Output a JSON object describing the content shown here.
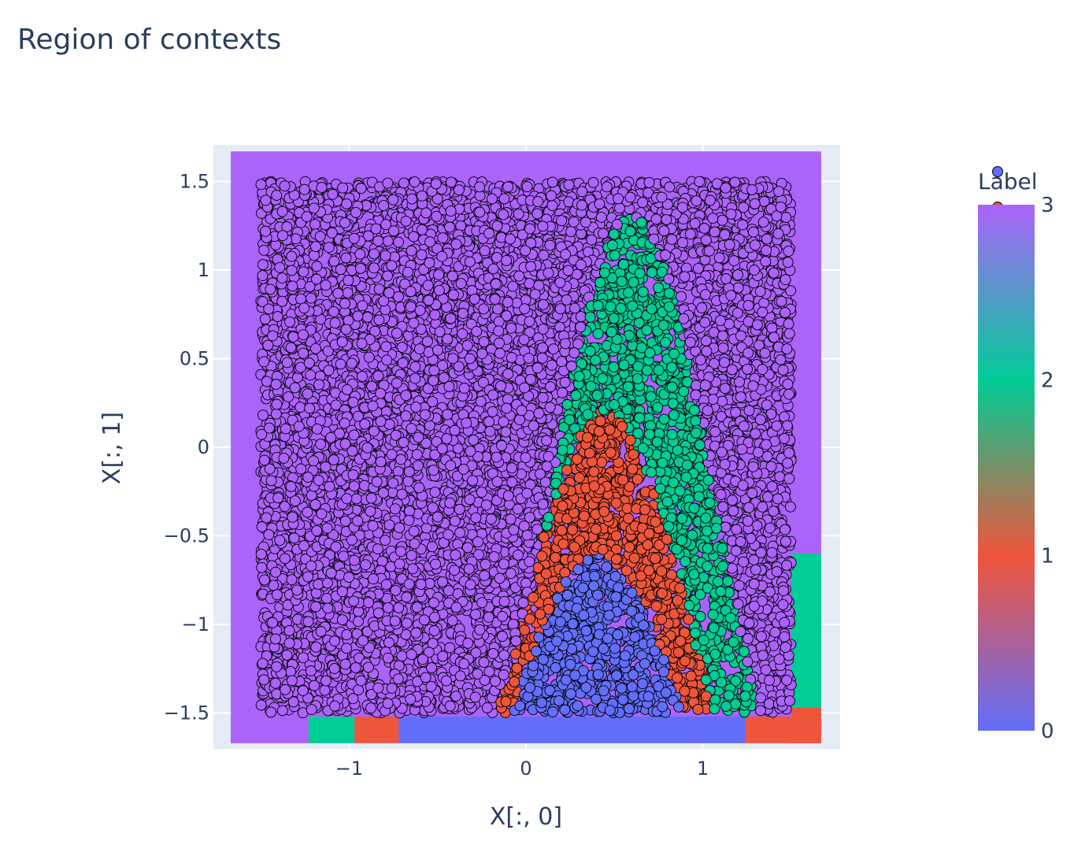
{
  "chart_data": {
    "type": "scatter",
    "title": "Region of contexts",
    "xlabel": "X[:, 0]",
    "ylabel": "X[:, 1]",
    "xlim": [
      -1.77,
      1.77
    ],
    "ylim": [
      -1.68,
      1.68
    ],
    "x_ticks": [
      -1,
      0,
      1
    ],
    "x_tick_labels": [
      "−1",
      "0",
      "1"
    ],
    "y_ticks": [
      -1.5,
      -1,
      -0.5,
      0,
      0.5,
      1,
      1.5
    ],
    "y_tick_labels": [
      "−1.5",
      "−1",
      "−0.5",
      "0",
      "0.5",
      "1",
      "1.5"
    ],
    "grid": true,
    "point_range": {
      "x": [
        -1.5,
        1.5
      ],
      "y": [
        -1.5,
        1.5
      ]
    },
    "boundaries": [
      {
        "between": [
          0,
          1
        ],
        "vertex_x": 0.4,
        "vertex_y": -0.6,
        "curve": "gaussian",
        "baseline": -3.0,
        "width": 0.71
      },
      {
        "between": [
          1,
          2
        ],
        "vertex_x": 0.45,
        "vertex_y": 0.2,
        "curve": "gaussian",
        "baseline": -3.0,
        "width": 0.7
      },
      {
        "between": [
          2,
          3
        ],
        "vertex_x": 0.6,
        "vertex_y": 1.3,
        "curve": "gaussian",
        "baseline": -3.0,
        "width": 0.69
      }
    ],
    "background_regions": [
      {
        "label": 3,
        "x_range": [
          -1.67,
          1.67
        ],
        "y_range": [
          -1.67,
          1.67
        ]
      },
      {
        "label": 2,
        "x_range": [
          1.5,
          1.67
        ],
        "y_range": [
          -1.47,
          -0.6
        ]
      },
      {
        "label": 1,
        "x_range": [
          1.5,
          1.67
        ],
        "y_range": [
          -1.67,
          -1.47
        ]
      },
      {
        "label": 3,
        "x_range": [
          -1.67,
          -1.23
        ],
        "y_range": [
          -1.67,
          -1.52
        ]
      },
      {
        "label": 2,
        "x_range": [
          -1.23,
          -0.97
        ],
        "y_range": [
          -1.67,
          -1.52
        ]
      },
      {
        "label": 1,
        "x_range": [
          -0.97,
          -0.72
        ],
        "y_range": [
          -1.67,
          -1.52
        ]
      },
      {
        "label": 0,
        "x_range": [
          -0.72,
          1.24
        ],
        "y_range": [
          -1.67,
          -1.52
        ]
      },
      {
        "label": 1,
        "x_range": [
          1.24,
          1.67
        ],
        "y_range": [
          -1.67,
          -1.52
        ]
      }
    ],
    "colorbar": {
      "title": "Label",
      "range": [
        0,
        3
      ],
      "ticks": [
        "0",
        "1",
        "2",
        "3"
      ],
      "colors": [
        {
          "value": 0,
          "color": "#636efa"
        },
        {
          "value": 1,
          "color": "#ef553b"
        },
        {
          "value": 2,
          "color": "#00cc96"
        },
        {
          "value": 3,
          "color": "#ab63fa"
        }
      ]
    },
    "legend_markers": [
      "#636efa",
      "#ef553b"
    ]
  },
  "colors": {
    "plot_bg": "#e5ecf6",
    "grid": "#ffffff",
    "text": "#2a3f5f",
    "marker_outline": "#000000"
  }
}
